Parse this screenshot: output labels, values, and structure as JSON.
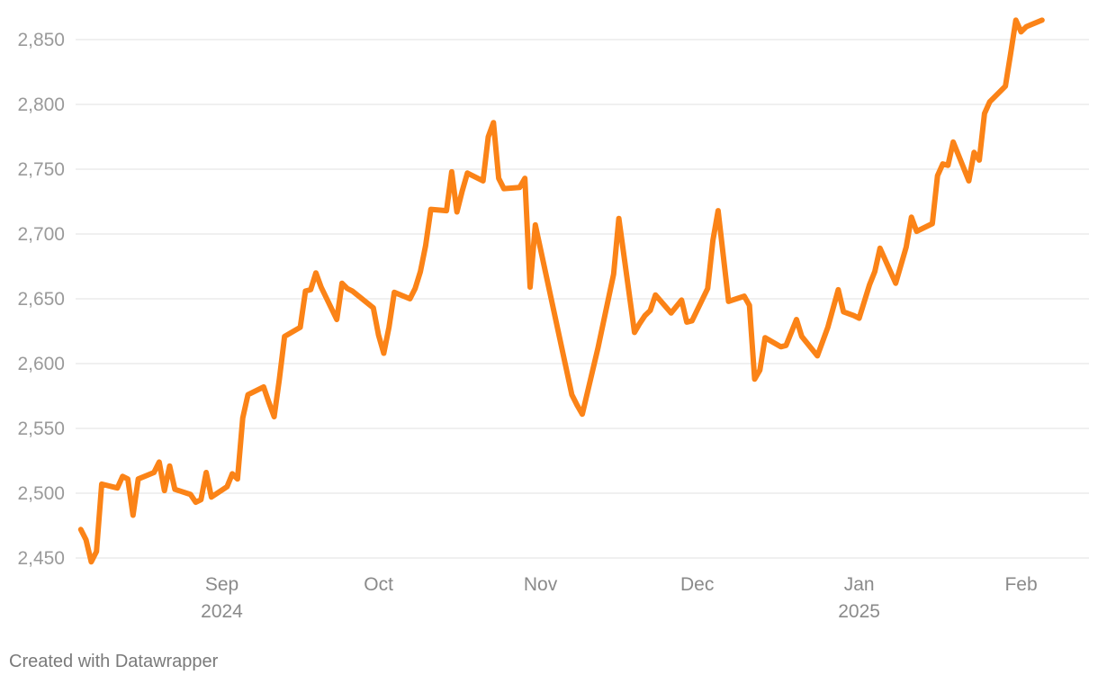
{
  "credit": "Created with Datawrapper",
  "colors": {
    "line": "#fb8317",
    "grid": "#e2e2e2",
    "tick_text": "#9a9a9a"
  },
  "chart_data": {
    "type": "line",
    "title": "",
    "xlabel": "",
    "ylabel": "",
    "ylim": [
      2440,
      2870
    ],
    "grid": true,
    "xlim": [
      "2024-08-04",
      "2025-02-14"
    ],
    "y_ticks": [
      2450,
      2500,
      2550,
      2600,
      2650,
      2700,
      2750,
      2800,
      2850
    ],
    "y_tick_labels": [
      "2,450",
      "2,500",
      "2,550",
      "2,600",
      "2,650",
      "2,700",
      "2,750",
      "2,800",
      "2,850"
    ],
    "x_ticks": [
      {
        "date": "2024-09-01",
        "label": "Sep",
        "sublabel": "2024"
      },
      {
        "date": "2024-10-01",
        "label": "Oct",
        "sublabel": ""
      },
      {
        "date": "2024-11-01",
        "label": "Nov",
        "sublabel": ""
      },
      {
        "date": "2024-12-01",
        "label": "Dec",
        "sublabel": ""
      },
      {
        "date": "2025-01-01",
        "label": "Jan",
        "sublabel": "2025"
      },
      {
        "date": "2025-02-01",
        "label": "Feb",
        "sublabel": ""
      }
    ],
    "series": [
      {
        "color": "#fb8317",
        "points": [
          [
            "2024-08-05",
            2472
          ],
          [
            "2024-08-06",
            2464
          ],
          [
            "2024-08-07",
            2447
          ],
          [
            "2024-08-08",
            2455
          ],
          [
            "2024-08-09",
            2507
          ],
          [
            "2024-08-12",
            2504
          ],
          [
            "2024-08-13",
            2513
          ],
          [
            "2024-08-14",
            2511
          ],
          [
            "2024-08-15",
            2483
          ],
          [
            "2024-08-16",
            2511
          ],
          [
            "2024-08-19",
            2516
          ],
          [
            "2024-08-20",
            2524
          ],
          [
            "2024-08-21",
            2502
          ],
          [
            "2024-08-22",
            2521
          ],
          [
            "2024-08-23",
            2503
          ],
          [
            "2024-08-26",
            2499
          ],
          [
            "2024-08-27",
            2493
          ],
          [
            "2024-08-28",
            2495
          ],
          [
            "2024-08-29",
            2516
          ],
          [
            "2024-08-30",
            2497
          ],
          [
            "2024-09-02",
            2505
          ],
          [
            "2024-09-03",
            2515
          ],
          [
            "2024-09-04",
            2511
          ],
          [
            "2024-09-05",
            2558
          ],
          [
            "2024-09-06",
            2576
          ],
          [
            "2024-09-09",
            2582
          ],
          [
            "2024-09-10",
            2570
          ],
          [
            "2024-09-11",
            2559
          ],
          [
            "2024-09-12",
            2588
          ],
          [
            "2024-09-13",
            2621
          ],
          [
            "2024-09-16",
            2628
          ],
          [
            "2024-09-17",
            2656
          ],
          [
            "2024-09-18",
            2657
          ],
          [
            "2024-09-19",
            2670
          ],
          [
            "2024-09-20",
            2659
          ],
          [
            "2024-09-23",
            2634
          ],
          [
            "2024-09-24",
            2662
          ],
          [
            "2024-09-25",
            2658
          ],
          [
            "2024-09-26",
            2656
          ],
          [
            "2024-09-30",
            2643
          ],
          [
            "2024-10-01",
            2622
          ],
          [
            "2024-10-02",
            2608
          ],
          [
            "2024-10-03",
            2628
          ],
          [
            "2024-10-04",
            2655
          ],
          [
            "2024-10-07",
            2650
          ],
          [
            "2024-10-08",
            2658
          ],
          [
            "2024-10-09",
            2671
          ],
          [
            "2024-10-10",
            2691
          ],
          [
            "2024-10-11",
            2719
          ],
          [
            "2024-10-14",
            2718
          ],
          [
            "2024-10-15",
            2748
          ],
          [
            "2024-10-16",
            2717
          ],
          [
            "2024-10-17",
            2733
          ],
          [
            "2024-10-18",
            2747
          ],
          [
            "2024-10-21",
            2741
          ],
          [
            "2024-10-22",
            2775
          ],
          [
            "2024-10-23",
            2786
          ],
          [
            "2024-10-24",
            2743
          ],
          [
            "2024-10-25",
            2735
          ],
          [
            "2024-10-28",
            2736
          ],
          [
            "2024-10-29",
            2743
          ],
          [
            "2024-10-30",
            2659
          ],
          [
            "2024-10-31",
            2707
          ],
          [
            "2024-11-07",
            2576
          ],
          [
            "2024-11-08",
            2568
          ],
          [
            "2024-11-09",
            2561
          ],
          [
            "2024-11-12",
            2612
          ],
          [
            "2024-11-15",
            2669
          ],
          [
            "2024-11-16",
            2712
          ],
          [
            "2024-11-19",
            2624
          ],
          [
            "2024-11-20",
            2631
          ],
          [
            "2024-11-21",
            2637
          ],
          [
            "2024-11-22",
            2641
          ],
          [
            "2024-11-23",
            2653
          ],
          [
            "2024-11-26",
            2639
          ],
          [
            "2024-11-28",
            2649
          ],
          [
            "2024-11-29",
            2632
          ],
          [
            "2024-11-30",
            2633
          ],
          [
            "2024-12-03",
            2658
          ],
          [
            "2024-12-04",
            2695
          ],
          [
            "2024-12-05",
            2718
          ],
          [
            "2024-12-06",
            2683
          ],
          [
            "2024-12-07",
            2648
          ],
          [
            "2024-12-10",
            2652
          ],
          [
            "2024-12-11",
            2645
          ],
          [
            "2024-12-12",
            2588
          ],
          [
            "2024-12-13",
            2595
          ],
          [
            "2024-12-14",
            2620
          ],
          [
            "2024-12-17",
            2613
          ],
          [
            "2024-12-18",
            2614
          ],
          [
            "2024-12-20",
            2634
          ],
          [
            "2024-12-21",
            2621
          ],
          [
            "2024-12-24",
            2606
          ],
          [
            "2024-12-26",
            2628
          ],
          [
            "2024-12-28",
            2657
          ],
          [
            "2024-12-29",
            2640
          ],
          [
            "2024-12-31",
            2637
          ],
          [
            "2025-01-01",
            2635
          ],
          [
            "2025-01-03",
            2661
          ],
          [
            "2025-01-04",
            2671
          ],
          [
            "2025-01-05",
            2689
          ],
          [
            "2025-01-08",
            2662
          ],
          [
            "2025-01-10",
            2690
          ],
          [
            "2025-01-11",
            2713
          ],
          [
            "2025-01-12",
            2702
          ],
          [
            "2025-01-15",
            2708
          ],
          [
            "2025-01-16",
            2745
          ],
          [
            "2025-01-17",
            2754
          ],
          [
            "2025-01-18",
            2753
          ],
          [
            "2025-01-19",
            2771
          ],
          [
            "2025-01-22",
            2741
          ],
          [
            "2025-01-23",
            2763
          ],
          [
            "2025-01-24",
            2757
          ],
          [
            "2025-01-25",
            2793
          ],
          [
            "2025-01-26",
            2802
          ],
          [
            "2025-01-29",
            2814
          ],
          [
            "2025-01-30",
            2839
          ],
          [
            "2025-01-31",
            2865
          ],
          [
            "2025-02-01",
            2856
          ],
          [
            "2025-02-02",
            2860
          ],
          [
            "2025-02-05",
            2865
          ]
        ]
      }
    ]
  }
}
